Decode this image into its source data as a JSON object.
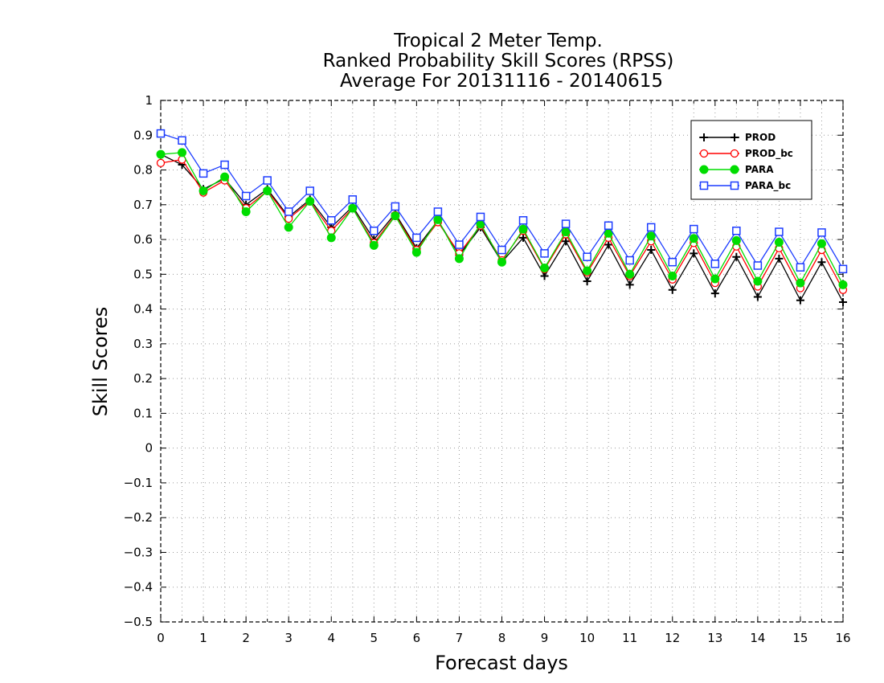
{
  "chart_data": {
    "type": "line",
    "title": [
      "Tropical 2 Meter Temp.",
      "Ranked Probability Skill Scores (RPSS)",
      "Average For 20131116 - 20140615"
    ],
    "xlabel": "Forecast days",
    "ylabel": "Skill Scores",
    "xlim": [
      0,
      16
    ],
    "ylim": [
      -0.5,
      1
    ],
    "x_ticks": [
      0,
      1,
      2,
      3,
      4,
      5,
      6,
      7,
      8,
      9,
      10,
      11,
      12,
      13,
      14,
      15,
      16
    ],
    "x_tick_labels": [
      "0",
      "1",
      "2",
      "3",
      "4",
      "5",
      "6",
      "7",
      "8",
      "9",
      "10",
      "11",
      "12",
      "13",
      "14",
      "15",
      "16"
    ],
    "y_ticks": [
      -0.5,
      -0.4,
      -0.3,
      -0.2,
      -0.1,
      0,
      0.1,
      0.2,
      0.3,
      0.4,
      0.5,
      0.6,
      0.7,
      0.8,
      0.9,
      1
    ],
    "y_tick_labels": [
      "−0.5",
      "−0.4",
      "−0.3",
      "−0.2",
      "−0.1",
      "0",
      "0.1",
      "0.2",
      "0.3",
      "0.4",
      "0.5",
      "0.6",
      "0.7",
      "0.8",
      "0.9",
      "1"
    ],
    "grid": true,
    "legend_position": "top-right",
    "x": [
      0,
      0.5,
      1,
      1.5,
      2,
      2.5,
      3,
      3.5,
      4,
      4.5,
      5,
      5.5,
      6,
      6.5,
      7,
      7.5,
      8,
      8.5,
      9,
      9.5,
      10,
      10.5,
      11,
      11.5,
      12,
      12.5,
      13,
      13.5,
      14,
      14.5,
      15,
      15.5,
      16
    ],
    "series": [
      {
        "name": "PROD",
        "color": "#000000",
        "marker": "plus",
        "values": [
          0.845,
          0.815,
          0.745,
          0.775,
          0.7,
          0.745,
          0.665,
          0.715,
          0.635,
          0.695,
          0.6,
          0.675,
          0.575,
          0.655,
          0.555,
          0.635,
          0.535,
          0.605,
          0.495,
          0.595,
          0.48,
          0.585,
          0.47,
          0.57,
          0.455,
          0.56,
          0.445,
          0.55,
          0.435,
          0.545,
          0.425,
          0.535,
          0.42
        ]
      },
      {
        "name": "PROD_bc",
        "color": "#ff0000",
        "marker": "circle-open",
        "values": [
          0.82,
          0.83,
          0.735,
          0.77,
          0.69,
          0.74,
          0.66,
          0.71,
          0.625,
          0.69,
          0.59,
          0.67,
          0.57,
          0.65,
          0.56,
          0.64,
          0.54,
          0.625,
          0.515,
          0.615,
          0.505,
          0.605,
          0.495,
          0.595,
          0.485,
          0.59,
          0.475,
          0.58,
          0.465,
          0.575,
          0.46,
          0.57,
          0.455
        ]
      },
      {
        "name": "PARA",
        "color": "#00dd00",
        "marker": "circle-filled",
        "values": [
          0.845,
          0.85,
          0.74,
          0.78,
          0.68,
          0.74,
          0.635,
          0.71,
          0.605,
          0.69,
          0.583,
          0.668,
          0.563,
          0.657,
          0.545,
          0.645,
          0.535,
          0.63,
          0.518,
          0.622,
          0.51,
          0.618,
          0.5,
          0.61,
          0.495,
          0.603,
          0.487,
          0.597,
          0.48,
          0.592,
          0.475,
          0.588,
          0.47
        ]
      },
      {
        "name": "PARA_bc",
        "color": "#1c3cff",
        "marker": "square-open",
        "values": [
          0.905,
          0.885,
          0.79,
          0.815,
          0.725,
          0.77,
          0.68,
          0.74,
          0.655,
          0.715,
          0.625,
          0.695,
          0.605,
          0.68,
          0.585,
          0.665,
          0.57,
          0.655,
          0.56,
          0.645,
          0.55,
          0.64,
          0.54,
          0.635,
          0.535,
          0.63,
          0.53,
          0.625,
          0.525,
          0.622,
          0.52,
          0.62,
          0.515
        ]
      }
    ]
  }
}
